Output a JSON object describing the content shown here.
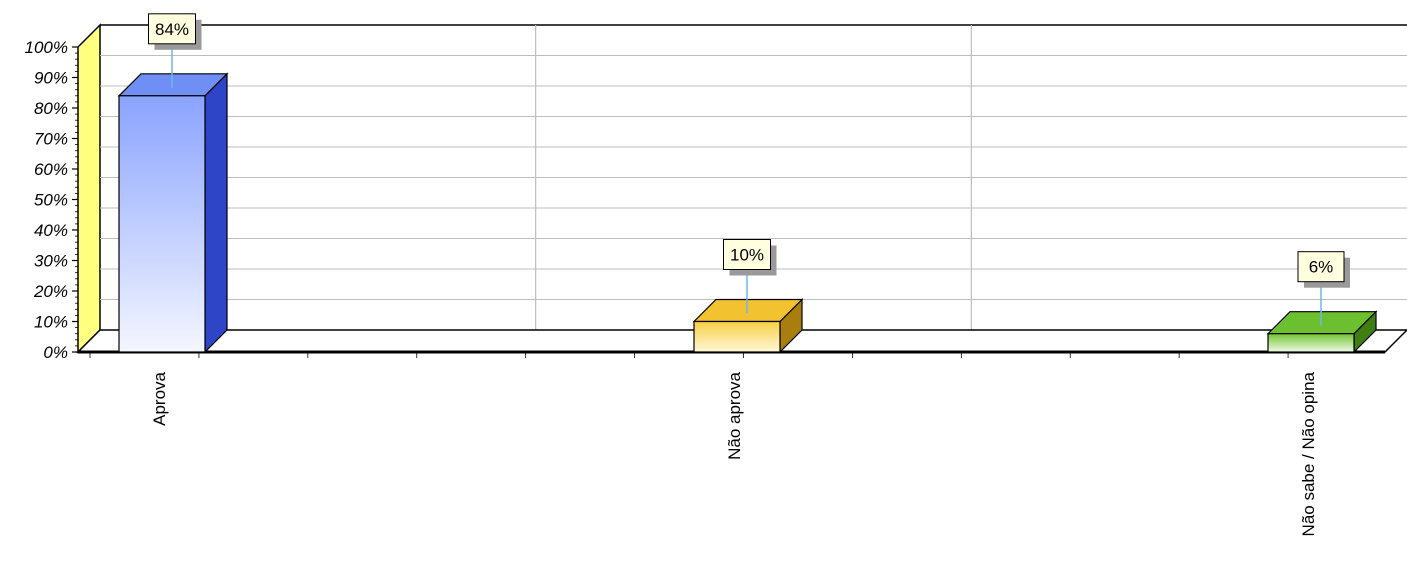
{
  "chart_data": {
    "type": "bar",
    "categories": [
      "Aprova",
      "Não aprova",
      "Não sabe / Não opina"
    ],
    "values": [
      84,
      10,
      6
    ],
    "data_labels": [
      "84%",
      "10%",
      "6%"
    ],
    "ylim": [
      0,
      100
    ],
    "y_ticks": [
      "0%",
      "10%",
      "20%",
      "30%",
      "40%",
      "50%",
      "60%",
      "70%",
      "80%",
      "90%",
      "100%"
    ],
    "grid": true,
    "legend": "none",
    "style": "3d",
    "colors": {
      "series": [
        "#6f8ff5",
        "#f2c230",
        "#6cbf2e"
      ],
      "series_dark": [
        "#2f45c8",
        "#a87f0f",
        "#3f7f12"
      ],
      "wall": "#ffff80",
      "label_box": "#ffffe0",
      "leader": "#6fb7e8"
    }
  }
}
